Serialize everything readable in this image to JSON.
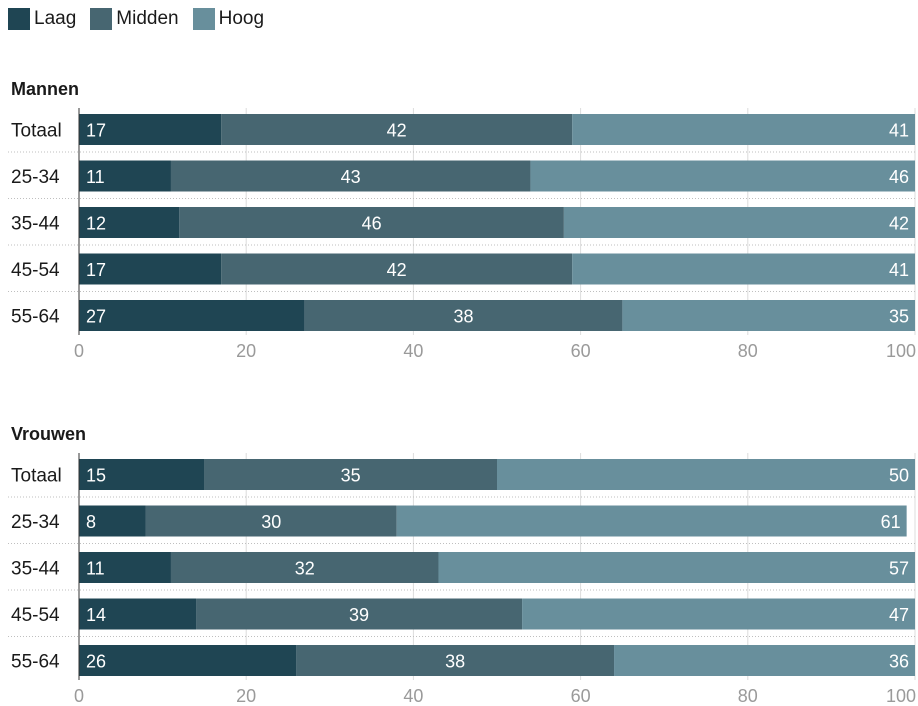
{
  "legend": {
    "items": [
      {
        "label": "Laag",
        "color": "#1f4553"
      },
      {
        "label": "Midden",
        "color": "#476671"
      },
      {
        "label": "Hoog",
        "color": "#688f9c"
      }
    ]
  },
  "chart_data": [
    {
      "type": "bar",
      "orientation": "horizontal",
      "stacked": true,
      "title": "Mannen",
      "categories": [
        "Totaal",
        "25-34",
        "35-44",
        "45-54",
        "55-64"
      ],
      "series": [
        {
          "name": "Laag",
          "values": [
            17,
            11,
            12,
            17,
            27
          ]
        },
        {
          "name": "Midden",
          "values": [
            42,
            43,
            46,
            42,
            38
          ]
        },
        {
          "name": "Hoog",
          "values": [
            41,
            46,
            42,
            41,
            35
          ]
        }
      ],
      "xlim": [
        0,
        100
      ],
      "xticks": [
        0,
        20,
        40,
        60,
        80,
        100
      ],
      "grid": true,
      "legend_position": "top-left"
    },
    {
      "type": "bar",
      "orientation": "horizontal",
      "stacked": true,
      "title": "Vrouwen",
      "categories": [
        "Totaal",
        "25-34",
        "35-44",
        "45-54",
        "55-64"
      ],
      "series": [
        {
          "name": "Laag",
          "values": [
            15,
            8,
            11,
            14,
            26
          ]
        },
        {
          "name": "Midden",
          "values": [
            35,
            30,
            32,
            39,
            38
          ]
        },
        {
          "name": "Hoog",
          "values": [
            50,
            61,
            57,
            47,
            36
          ]
        }
      ],
      "xlim": [
        0,
        100
      ],
      "xticks": [
        0,
        20,
        40,
        60,
        80,
        100
      ],
      "grid": true,
      "legend_position": "top-left"
    }
  ]
}
